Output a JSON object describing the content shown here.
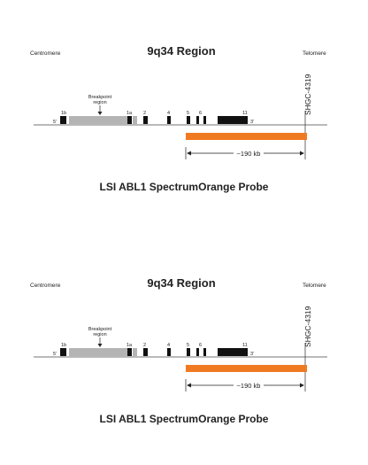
{
  "diagram": {
    "region_title": "9q34 Region",
    "left_label": "Centromere",
    "right_label": "Telomere",
    "marker_label": "SHGC-4319",
    "breakpoint_label_line1": "Breakpoint",
    "breakpoint_label_line2": "region",
    "five_prime_label": "5'",
    "three_prime_label": "3'",
    "exon_labels": [
      "1b",
      "1a",
      "2",
      "4",
      "5",
      "6",
      "11"
    ],
    "size_label": "~190 kb",
    "probe_caption": "LSI ABL1 SpectrumOrange Probe",
    "colors": {
      "probe": "#f07a21",
      "breakpoint_region": "#b4b4b4",
      "exon": "#111111",
      "line": "#444444"
    }
  }
}
